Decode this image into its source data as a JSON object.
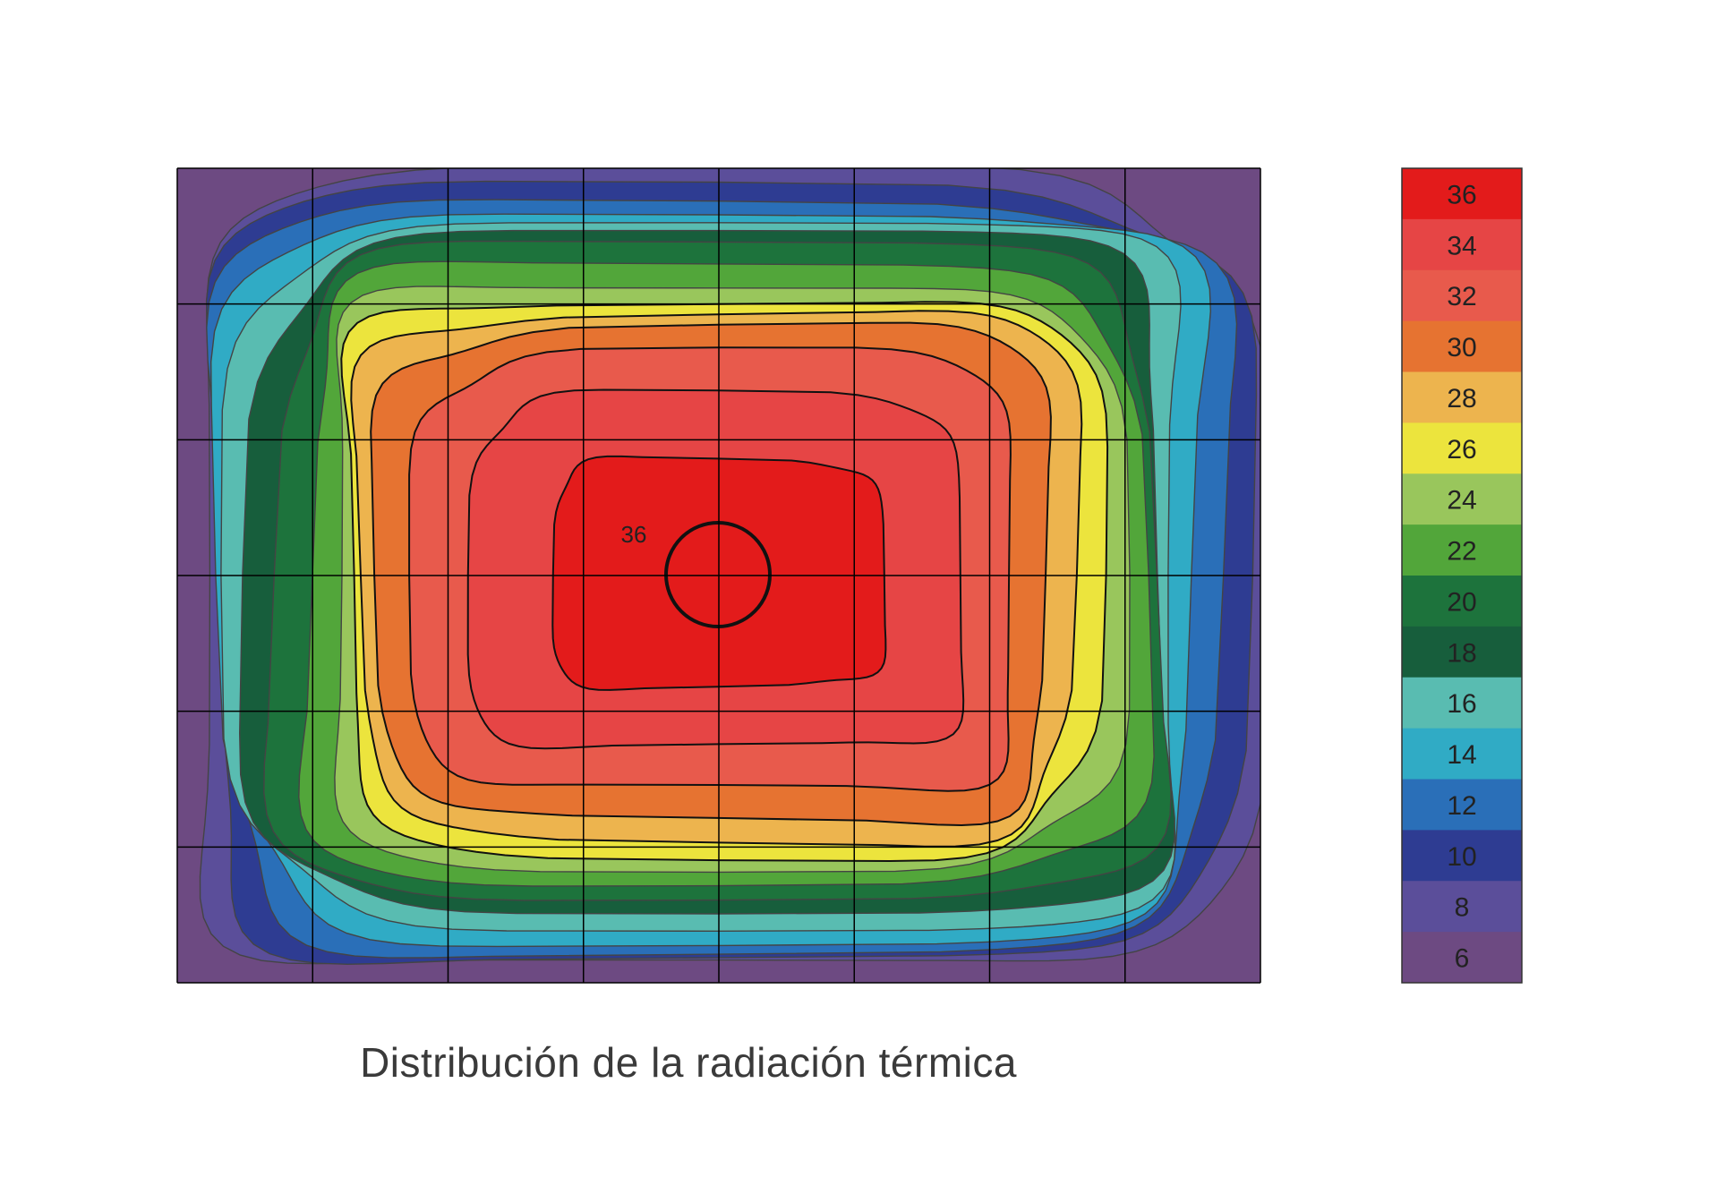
{
  "chart_data": {
    "type": "heatmap",
    "title": "Distribución de la radiación térmica",
    "levels": [
      36,
      34,
      32,
      30,
      28,
      26,
      24,
      22,
      20,
      18,
      16,
      14,
      12,
      10,
      8,
      6
    ],
    "level_colors": {
      "36": "#e31b1b",
      "34": "#e64545",
      "32": "#e85a4c",
      "30": "#e67331",
      "28": "#edb44e",
      "26": "#ece43d",
      "24": "#99c65c",
      "22": "#52a63a",
      "20": "#1d733c",
      "18": "#175e3c",
      "16": "#59bcb1",
      "14": "#30abc5",
      "12": "#2a6fb8",
      "10": "#2e3c92",
      "8": "#5b4e9a",
      "6": "#6d4a82"
    },
    "grid": {
      "columns": 8,
      "rows": 6
    },
    "peak_annotation": "36"
  }
}
